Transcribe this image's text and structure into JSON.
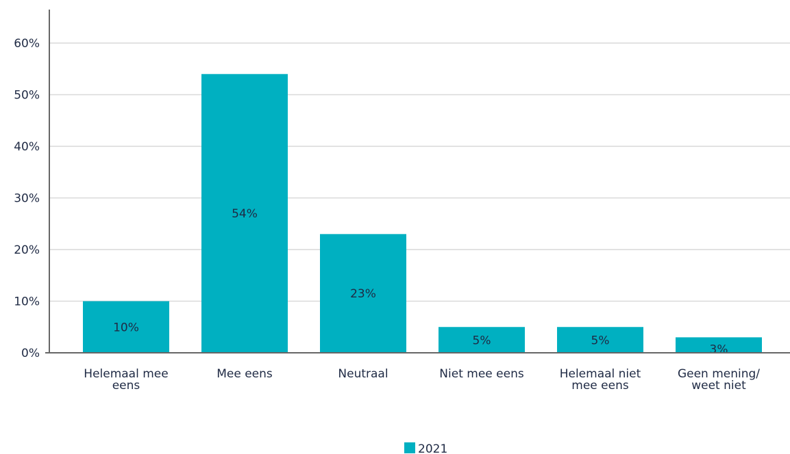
{
  "chart_data": {
    "type": "bar",
    "categories": [
      [
        "Helemaal mee",
        "eens"
      ],
      [
        "Mee eens"
      ],
      [
        "Neutraal"
      ],
      [
        "Niet mee eens"
      ],
      [
        "Helemaal niet",
        "mee eens"
      ],
      [
        "Geen mening/",
        "weet niet"
      ]
    ],
    "series": [
      {
        "name": "2021",
        "values": [
          10,
          54,
          23,
          5,
          5,
          3
        ]
      }
    ],
    "data_labels": [
      "10%",
      "54%",
      "23%",
      "5%",
      "5%",
      "3%"
    ],
    "yticks": [
      "0%",
      "10%",
      "20%",
      "30%",
      "40%",
      "50%",
      "60%"
    ],
    "ylim": [
      0,
      60
    ],
    "grid": true,
    "legend_position": "bottom-center",
    "colors": {
      "bar": "#00b0c1",
      "grid": "#d9d9d9",
      "axis": "#666666",
      "text": "#1f2a44"
    }
  }
}
